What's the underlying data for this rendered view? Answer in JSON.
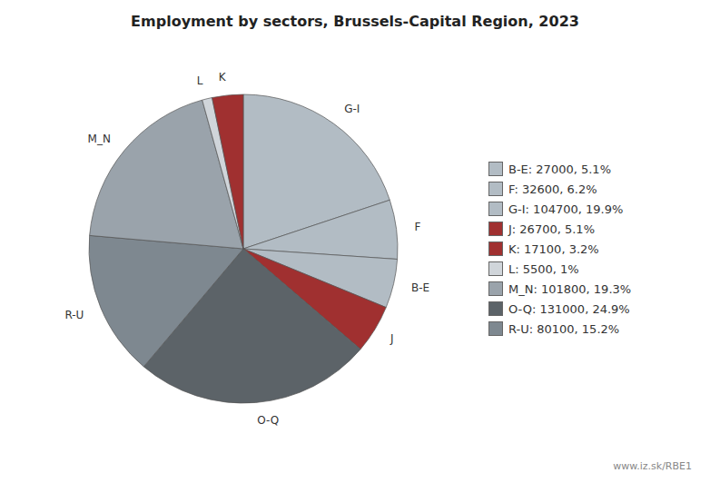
{
  "chart_data": {
    "type": "pie",
    "title": "Employment by sectors, Brussels-Capital Region, 2023",
    "categories": [
      "G-I",
      "F",
      "B-E",
      "J",
      "O-Q",
      "R-U",
      "M_N",
      "L",
      "K"
    ],
    "values": [
      104700,
      32600,
      27000,
      26700,
      131000,
      80100,
      101800,
      5500,
      17100
    ],
    "colors": [
      "#b2bcc4",
      "#b2bcc4",
      "#b2bcc4",
      "#a03030",
      "#5c6368",
      "#7e8890",
      "#9aa3ab",
      "#d0d5da",
      "#a03030"
    ],
    "legend": "right",
    "legend_entries": [
      {
        "label": "B-E: 27000, 5.1%",
        "color": "#b2bcc4"
      },
      {
        "label": "F: 32600, 6.2%",
        "color": "#b2bcc4"
      },
      {
        "label": "G-I: 104700, 19.9%",
        "color": "#b2bcc4"
      },
      {
        "label": "J: 26700, 5.1%",
        "color": "#a03030"
      },
      {
        "label": "K: 17100, 3.2%",
        "color": "#a03030"
      },
      {
        "label": "L: 5500, 1%",
        "color": "#d0d5da"
      },
      {
        "label": "M_N: 101800, 19.3%",
        "color": "#9aa3ab"
      },
      {
        "label": "O-Q: 131000, 24.9%",
        "color": "#5c6368"
      },
      {
        "label": "R-U: 80100, 15.2%",
        "color": "#7e8890"
      }
    ],
    "annotations": [
      "www.iz.sk/RBE1"
    ]
  }
}
